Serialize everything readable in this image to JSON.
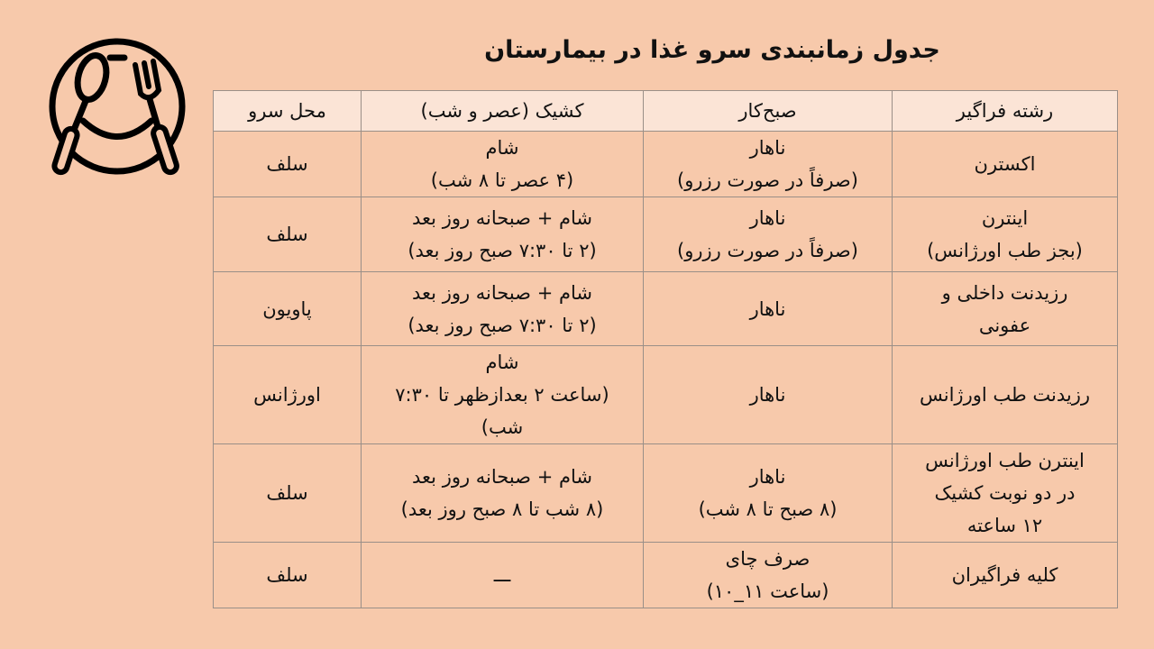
{
  "title": "جدول زمانبندی سرو غذا در بیمارستان",
  "logo_icon": "plate-spoon-fork-icon",
  "colors": {
    "background": "#f7c9ab",
    "header": "#fbe4d6",
    "border": "#9a8f88"
  },
  "table": {
    "headers": [
      "رشته فراگیر",
      "صبح‌کار",
      "کشیک (عصر و شب)",
      "محل سرو"
    ],
    "rows": [
      [
        [
          "اکسترن"
        ],
        [
          "ناهار",
          "(صرفاً در صورت رزرو)"
        ],
        [
          "شام",
          "(۴ عصر تا ۸ شب)"
        ],
        [
          "سلف"
        ]
      ],
      [
        [
          "اینترن",
          "(بجز طب اورژانس)"
        ],
        [
          "ناهار",
          "(صرفاً در صورت رزرو)"
        ],
        [
          "شام + صبحانه روز بعد",
          "(۲ تا ۷:۳۰ صبح روز بعد)"
        ],
        [
          "سلف"
        ]
      ],
      [
        [
          "رزیدنت داخلی و",
          "عفونی"
        ],
        [
          "ناهار"
        ],
        [
          "شام + صبحانه روز بعد",
          "(۲ تا ۷:۳۰ صبح روز بعد)"
        ],
        [
          "پاویون"
        ]
      ],
      [
        [
          "رزیدنت طب اورژانس"
        ],
        [
          "ناهار"
        ],
        [
          "شام",
          "(ساعت ۲ بعدازظهر تا ۷:۳۰",
          "شب)"
        ],
        [
          "اورژانس"
        ]
      ],
      [
        [
          "اینترن طب اورژانس",
          "در دو نوبت کشیک",
          "۱۲ ساعته"
        ],
        [
          "ناهار",
          "(۸ صبح تا ۸ شب)"
        ],
        [
          "شام + صبحانه روز بعد",
          "(۸ شب تا ۸ صبح روز بعد)"
        ],
        [
          "سلف"
        ]
      ],
      [
        [
          "کلیه فراگیران"
        ],
        [
          "صرف چای",
          "(ساعت ۱۱_۱۰)"
        ],
        [
          "ـــ"
        ],
        [
          "سلف"
        ]
      ]
    ]
  }
}
